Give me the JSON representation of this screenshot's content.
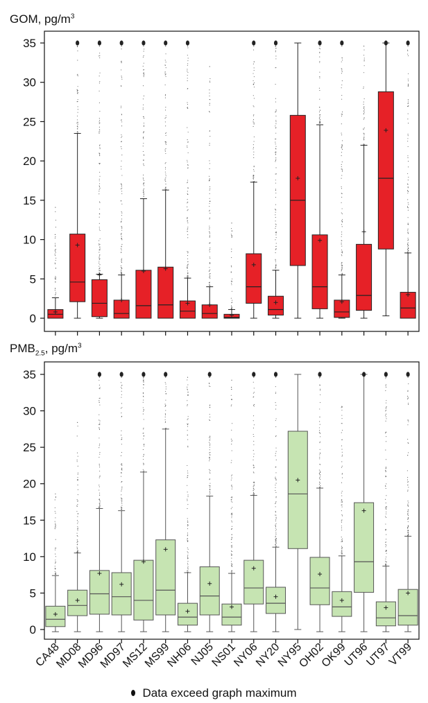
{
  "colors": {
    "gom_fill": "#e62127",
    "pmb_fill": "#c6e4b2",
    "outline": "#222222",
    "pmb_outline": "#555555",
    "dot": "#222222"
  },
  "x_tick_labels": [
    "CA48",
    "MD08",
    "MD96",
    "MD97",
    "MS12",
    "MS99",
    "NH06",
    "NJ05",
    "NS01",
    "NY06",
    "NY20",
    "NY95",
    "OH02",
    "OK99",
    "UT96",
    "UT97",
    "VT99"
  ],
  "legend_text": "Data exceed graph maximum",
  "chart_data": [
    {
      "type": "box",
      "title_main": "GOM, pg/m",
      "title_sup": "3",
      "ylim": [
        0,
        35
      ],
      "yticks": [
        0,
        5,
        10,
        15,
        20,
        25,
        30,
        35
      ],
      "categories": [
        "CA48",
        "MD08",
        "MD96",
        "MD97",
        "MS12",
        "MS99",
        "NH06",
        "NJ05",
        "NS01",
        "NY06",
        "NY20",
        "NY95",
        "OH02",
        "OK99",
        "UT96",
        "UT97",
        "VT99"
      ],
      "q1": [
        0.0,
        2.1,
        0.2,
        0.0,
        0.0,
        0.0,
        0.0,
        0.0,
        0.0,
        1.9,
        0.4,
        6.7,
        1.2,
        0.1,
        1.0,
        8.8,
        0.0
      ],
      "median": [
        0.5,
        4.6,
        1.9,
        0.6,
        1.6,
        1.7,
        0.9,
        0.6,
        0.1,
        4.0,
        1.1,
        15.0,
        4.0,
        0.8,
        2.9,
        17.8,
        1.3
      ],
      "q3": [
        1.1,
        10.7,
        4.9,
        2.3,
        6.1,
        6.5,
        2.2,
        1.7,
        0.5,
        8.2,
        2.8,
        25.8,
        10.6,
        2.3,
        9.4,
        28.8,
        3.3
      ],
      "whisker_low": [
        0.0,
        0.0,
        0.0,
        0.0,
        0.0,
        0.0,
        0.0,
        0.0,
        0.0,
        0.0,
        0.0,
        0.0,
        0.0,
        0.0,
        0.0,
        0.3,
        0.0
      ],
      "whisker_high": [
        2.6,
        23.5,
        5.6,
        5.5,
        15.2,
        16.3,
        5.1,
        4.0,
        1.1,
        17.3,
        6.1,
        35.0,
        24.6,
        5.5,
        22.0,
        35.0,
        8.3
      ],
      "mean": [
        0.8,
        9.3,
        5.5,
        2.3,
        6.0,
        6.3,
        1.9,
        1.7,
        0.4,
        6.8,
        2.0,
        17.8,
        9.9,
        2.1,
        11.0,
        23.9,
        3.0
      ],
      "outlier_max": [
        14.1,
        35.0,
        35.0,
        35.0,
        35.0,
        35.0,
        35.0,
        32.0,
        12.1,
        35.0,
        35.0,
        35.0,
        35.0,
        35.0,
        35.0,
        35.0,
        35.0
      ],
      "exceeds_max": [
        false,
        true,
        true,
        true,
        true,
        true,
        true,
        false,
        false,
        true,
        true,
        false,
        true,
        true,
        false,
        true,
        true
      ]
    },
    {
      "type": "box",
      "title_main": "PMB",
      "title_sub": "2.5",
      "title_rest": ", pg/m",
      "title_sup": "3",
      "ylim": [
        0,
        35
      ],
      "yticks": [
        0,
        5,
        10,
        15,
        20,
        25,
        30,
        35
      ],
      "categories": [
        "CA48",
        "MD08",
        "MD96",
        "MD97",
        "MS12",
        "MS99",
        "NH06",
        "NJ05",
        "NS01",
        "NY06",
        "NY20",
        "NY95",
        "OH02",
        "OK99",
        "UT96",
        "UT97",
        "VT99"
      ],
      "q1": [
        0.4,
        1.9,
        2.1,
        2.0,
        1.3,
        2.0,
        0.6,
        2.0,
        0.6,
        3.5,
        2.2,
        11.1,
        3.4,
        1.8,
        5.1,
        0.5,
        0.6
      ],
      "median": [
        1.4,
        3.3,
        4.9,
        4.5,
        4.0,
        5.4,
        1.7,
        4.6,
        1.7,
        5.7,
        3.6,
        18.6,
        5.7,
        3.1,
        9.3,
        1.6,
        1.9
      ],
      "q3": [
        3.2,
        5.4,
        8.1,
        7.8,
        9.5,
        12.3,
        3.6,
        8.6,
        3.5,
        9.5,
        5.8,
        27.2,
        9.9,
        5.2,
        17.4,
        3.8,
        5.5
      ],
      "whisker_low": [
        -0.3,
        -0.3,
        -0.3,
        -0.3,
        -0.3,
        -0.3,
        -0.3,
        -0.3,
        -0.3,
        -0.3,
        -0.3,
        0.0,
        -0.3,
        -0.3,
        -0.3,
        -0.3,
        -0.3
      ],
      "whisker_high": [
        7.4,
        10.5,
        16.6,
        16.3,
        21.6,
        27.5,
        7.8,
        18.3,
        7.7,
        18.4,
        11.3,
        35.0,
        19.4,
        10.1,
        35.0,
        8.7,
        12.8
      ],
      "mean": [
        2.1,
        4.0,
        7.7,
        6.2,
        9.3,
        11.0,
        2.5,
        6.3,
        3.1,
        8.4,
        4.5,
        20.5,
        7.6,
        4.0,
        16.3,
        3.0,
        5.0
      ],
      "outlier_max": [
        18.6,
        28.4,
        35.0,
        35.0,
        35.0,
        35.0,
        34.7,
        35.0,
        34.2,
        35.0,
        35.0,
        35.0,
        35.0,
        30.6,
        35.0,
        35.0,
        35.0
      ],
      "exceeds_max": [
        false,
        false,
        true,
        true,
        true,
        true,
        false,
        true,
        false,
        true,
        true,
        false,
        true,
        false,
        true,
        true,
        true
      ]
    }
  ]
}
